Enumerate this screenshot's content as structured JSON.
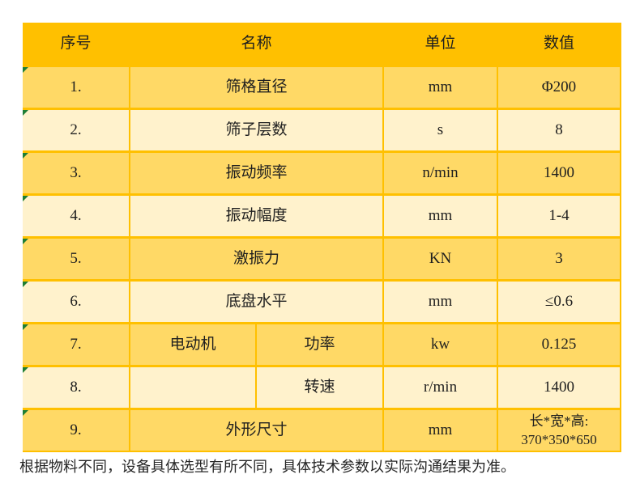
{
  "colors": {
    "header_bg": "#FFC000",
    "row_gold": "#FFD966",
    "row_cream": "#FFF2CC",
    "grid_line": "#FFC000",
    "flag_green": "#1E7E34",
    "text": "#1F1F1F"
  },
  "table": {
    "header": {
      "no": "序号",
      "name": "名称",
      "unit": "单位",
      "value": "数值"
    },
    "rows": [
      {
        "no": "1.",
        "name": "筛格直径",
        "unit": "mm",
        "value": "Φ200"
      },
      {
        "no": "2.",
        "name": "筛子层数",
        "unit": "s",
        "value": "8"
      },
      {
        "no": "3.",
        "name": "振动频率",
        "unit": "n/min",
        "value": "1400"
      },
      {
        "no": "4.",
        "name": "振动幅度",
        "unit": "mm",
        "value": "1-4"
      },
      {
        "no": "5.",
        "name": "激振力",
        "unit": "KN",
        "value": "3"
      },
      {
        "no": "6.",
        "name": "底盘水平",
        "unit": "mm",
        "value": "≤0.6"
      },
      {
        "no": "7.",
        "name": "电动机",
        "name2": "功率",
        "unit": "kw",
        "value": "0.125"
      },
      {
        "no": "8.",
        "name": "",
        "name2": "转速",
        "unit": "r/min",
        "value": "1400"
      },
      {
        "no": "9.",
        "name": "外形尺寸",
        "unit": "mm",
        "value": "长*宽*高:",
        "value2": "370*350*650"
      }
    ]
  },
  "footer": {
    "note": "根据物料不同，设备具体选型有所不同，具体技术参数以实际沟通结果为准。"
  }
}
